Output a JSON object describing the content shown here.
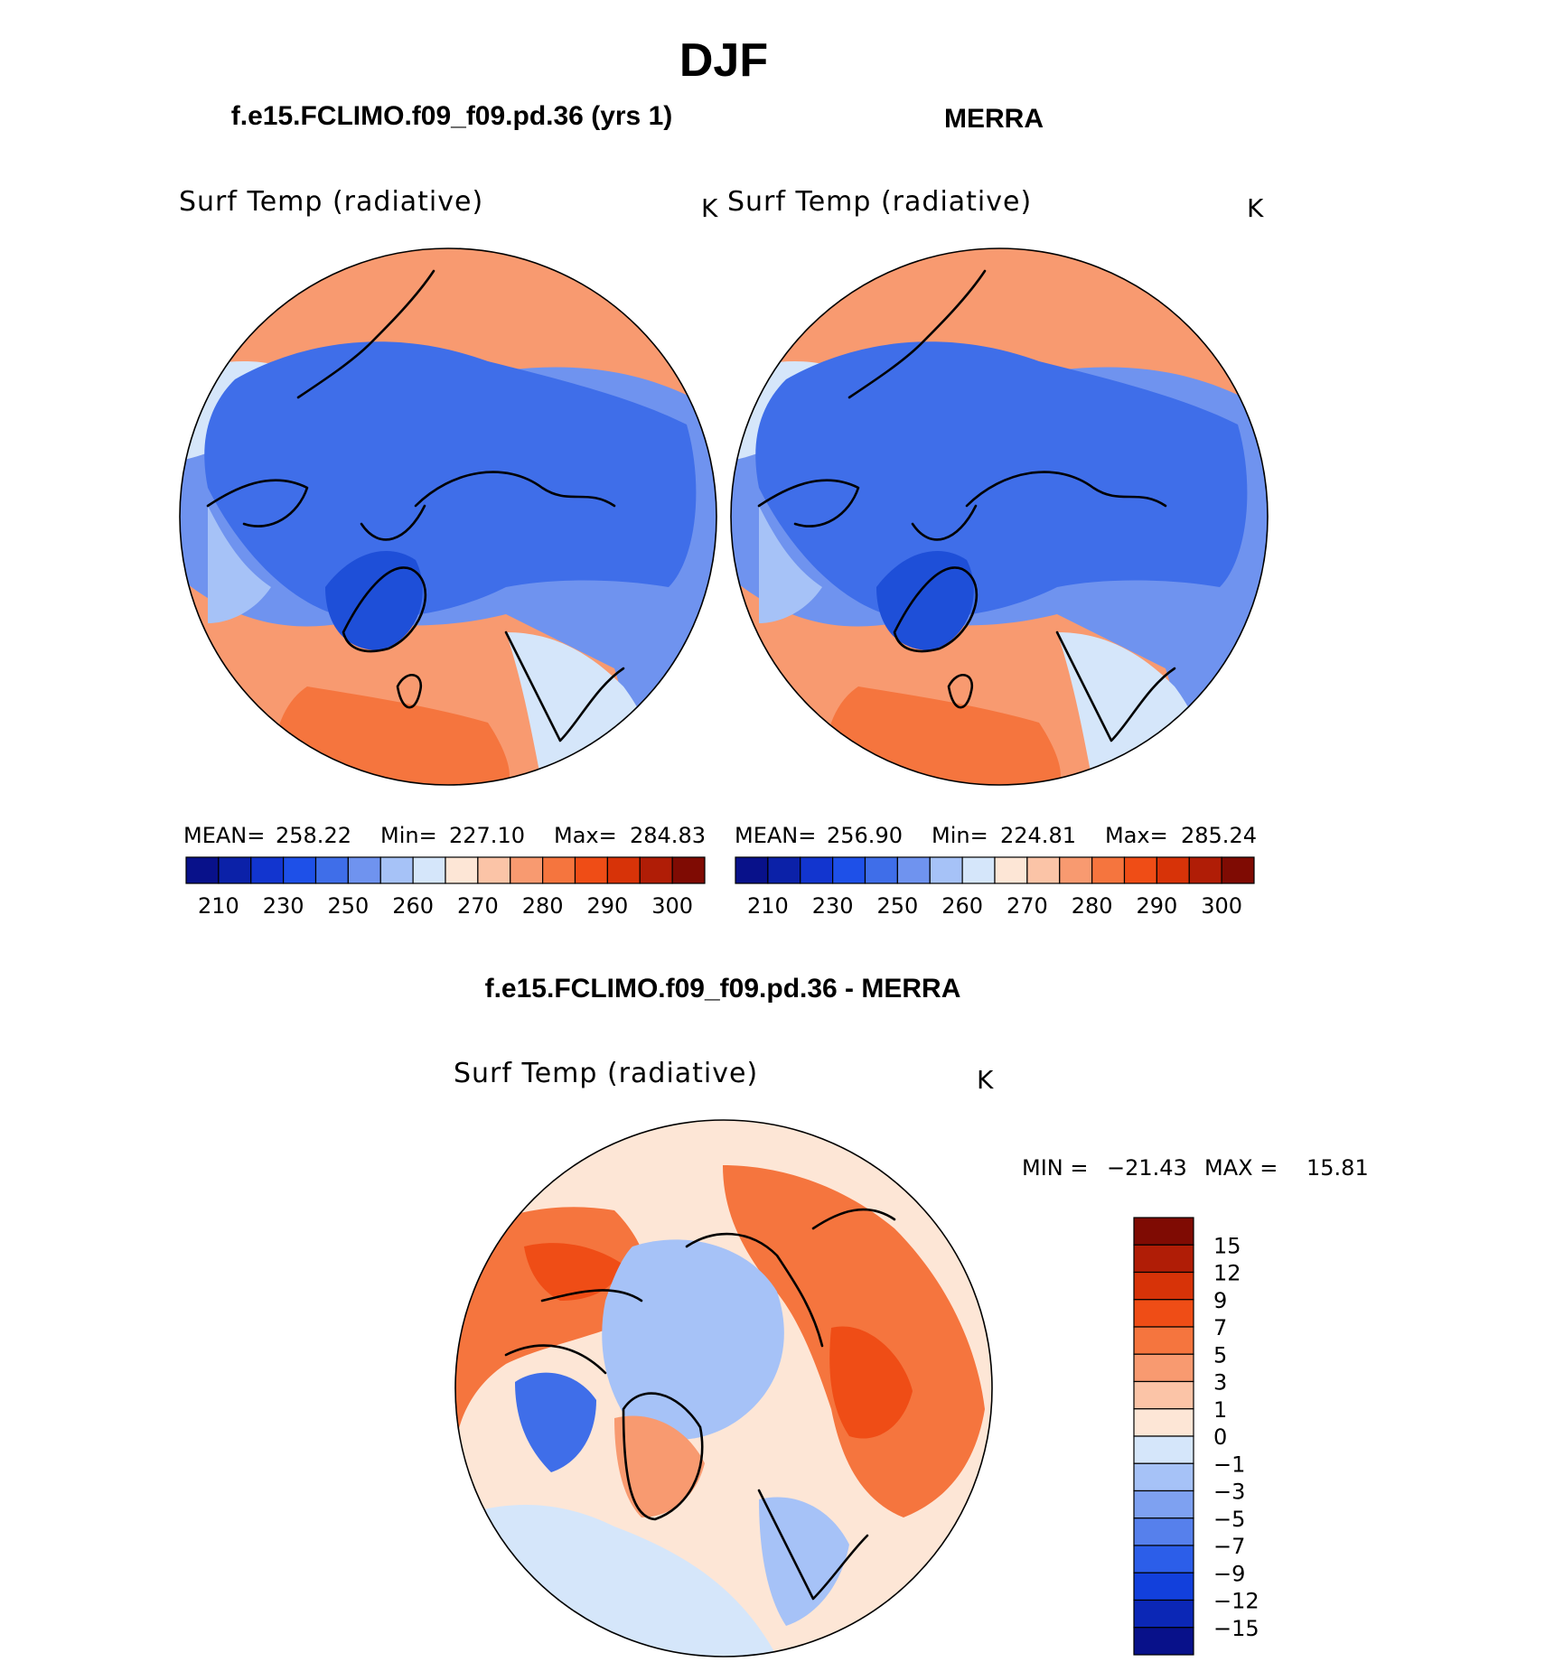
{
  "title": "DJF",
  "panels": [
    {
      "heading": "f.e15.FCLIMO.f09_f09.pd.36 (yrs 1)",
      "variable": "Surf Temp (radiative)",
      "units": "K",
      "stats": {
        "mean_label": "MEAN=",
        "mean": "258.22",
        "min_label": "Min=",
        "min": "227.10",
        "max_label": "Max=",
        "max": "284.83"
      }
    },
    {
      "heading": "MERRA",
      "variable": "Surf Temp (radiative)",
      "units": "K",
      "stats": {
        "mean_label": "MEAN=",
        "mean": "256.90",
        "min_label": "Min=",
        "min": "224.81",
        "max_label": "Max=",
        "max": "285.24"
      }
    }
  ],
  "abs_colorbar": {
    "colors": [
      "#08118a",
      "#0b21a8",
      "#1235cf",
      "#1e50e8",
      "#3f6ee9",
      "#6f93ef",
      "#a6c2f7",
      "#d5e6fa",
      "#fde6d6",
      "#fbc4a7",
      "#f89a70",
      "#f5753e",
      "#ef4d16",
      "#d73308",
      "#b01d06",
      "#7f0b03"
    ],
    "labels": [
      "210",
      "230",
      "250",
      "260",
      "270",
      "280",
      "290",
      "300"
    ]
  },
  "diff_panel": {
    "heading": "f.e15.FCLIMO.f09_f09.pd.36 - MERRA",
    "variable": "Surf Temp (radiative)",
    "units": "K",
    "minmax": {
      "min_label": "MIN =",
      "min": "−21.43",
      "max_label": "MAX =",
      "max": "15.81"
    }
  },
  "diff_colorbar": {
    "colors": [
      "#7f0b03",
      "#b01d06",
      "#d73308",
      "#ef4d16",
      "#f5753e",
      "#f89a70",
      "#fbc4a7",
      "#fde6d6",
      "#d5e6fa",
      "#a6c2f7",
      "#7ea1f1",
      "#5680ec",
      "#2c5ee9",
      "#1240dc",
      "#0b27b6",
      "#08118a"
    ],
    "labels": [
      "15",
      "12",
      "9",
      "7",
      "5",
      "3",
      "1",
      "0",
      "−1",
      "−3",
      "−5",
      "−7",
      "−9",
      "−12",
      "−15"
    ]
  },
  "palette": {
    "cold_deep": "#1e4fd8",
    "cold": "#3f6ee9",
    "cool": "#6f93ef",
    "cool_light": "#a6c2f7",
    "pale_blue": "#d5e6fa",
    "pale_warm": "#fde6d6",
    "warm_light": "#fbc4a7",
    "warm": "#f89a70",
    "hot": "#f5753e",
    "hotter": "#ef4d16",
    "diff_bg": "#fde6d6"
  }
}
